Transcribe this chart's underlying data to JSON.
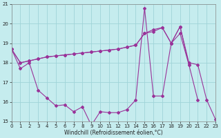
{
  "xlabel": "Windchill (Refroidissement éolien,°C)",
  "background_color": "#c5ecee",
  "grid_color": "#9fd4d8",
  "line_color": "#993399",
  "xlim": [
    0,
    23
  ],
  "ylim": [
    15,
    21
  ],
  "yticks": [
    15,
    16,
    17,
    18,
    19,
    20,
    21
  ],
  "xticks": [
    0,
    1,
    2,
    3,
    4,
    5,
    6,
    7,
    8,
    9,
    10,
    11,
    12,
    13,
    14,
    15,
    16,
    17,
    18,
    19,
    20,
    21,
    22,
    23
  ],
  "series_upper_x": [
    0,
    1,
    2,
    3,
    4,
    5,
    6,
    7,
    8,
    9,
    10,
    11,
    12,
    13,
    14,
    15,
    16,
    17,
    18,
    19,
    20,
    21,
    22,
    23
  ],
  "series_upper_y": [
    18.7,
    18.0,
    18.1,
    18.2,
    18.3,
    18.35,
    18.4,
    18.45,
    18.5,
    18.55,
    18.6,
    18.65,
    18.7,
    18.8,
    18.9,
    19.5,
    19.7,
    19.8,
    19.0,
    19.85,
    18.0,
    17.9,
    16.1,
    15.1
  ],
  "series_mid_x": [
    0,
    1,
    2,
    3,
    4,
    5,
    6,
    7,
    8,
    9,
    10,
    11,
    12,
    13,
    14,
    15,
    16,
    17,
    18,
    19,
    20
  ],
  "series_mid_y": [
    18.7,
    18.0,
    18.1,
    18.2,
    18.3,
    18.35,
    18.4,
    18.45,
    18.5,
    18.55,
    18.6,
    18.65,
    18.7,
    18.8,
    18.9,
    19.5,
    19.6,
    19.8,
    19.0,
    19.85,
    17.9
  ],
  "series_lower_x": [
    0,
    1,
    2,
    3,
    4,
    5,
    6,
    7,
    8,
    9,
    10,
    11,
    12,
    13,
    14,
    15,
    16,
    17,
    18,
    19,
    20,
    21
  ],
  "series_lower_y": [
    18.7,
    17.7,
    18.0,
    16.6,
    16.2,
    15.8,
    15.85,
    15.5,
    15.75,
    14.8,
    15.5,
    15.45,
    15.45,
    15.6,
    16.1,
    20.8,
    16.3,
    16.3,
    19.0,
    19.5,
    17.9,
    16.1
  ]
}
